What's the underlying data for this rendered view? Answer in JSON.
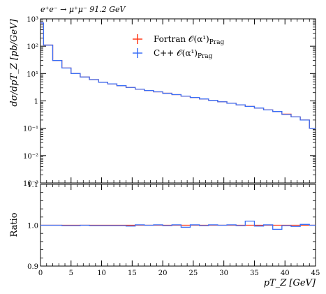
{
  "chart_data": {
    "type": "line",
    "title": "e⁺e⁻ → μ⁺μ⁻ 91.2 GeV",
    "xlabel": "pT_Z [GeV]",
    "ylabel_main": "dσ/dpT_Z [pb/GeV]",
    "ylabel_ratio": "Ratio",
    "xlim": [
      0,
      45
    ],
    "ylim_main": [
      0.001,
      1000
    ],
    "yscale_main": "log",
    "ylim_ratio": [
      0.9,
      1.1
    ],
    "x_ticks": [
      0,
      5,
      10,
      15,
      20,
      25,
      30,
      35,
      40,
      45
    ],
    "y_ticks_main": [
      {
        "value": 1000,
        "label": "10³"
      },
      {
        "value": 100,
        "label": "10²"
      },
      {
        "value": 10,
        "label": "10¹"
      },
      {
        "value": 1,
        "label": "1"
      },
      {
        "value": 0.1,
        "label": "10⁻¹"
      },
      {
        "value": 0.01,
        "label": "10⁻²"
      },
      {
        "value": 0.001,
        "label": "10⁻³"
      }
    ],
    "y_ticks_ratio": [
      {
        "value": 1.1,
        "label": "1.1"
      },
      {
        "value": 1.0,
        "label": "1.0"
      },
      {
        "value": 0.9,
        "label": "0.9"
      }
    ],
    "legend_position": "top-center",
    "grid": false,
    "bin_edges": [
      0,
      0.5,
      2,
      3.5,
      5,
      6.5,
      8,
      9.5,
      11,
      12.5,
      14,
      15.5,
      17,
      18.5,
      20,
      21.5,
      23,
      24.5,
      26,
      27.5,
      29,
      30.5,
      32,
      33.5,
      35,
      36.5,
      38,
      39.5,
      41,
      42.5,
      44,
      45
    ],
    "series": [
      {
        "name": "Fortran 𝒪(α¹)",
        "name_sub": "Prag",
        "color": "#ff3a1a",
        "values": [
          700,
          110,
          30,
          16,
          10,
          7.5,
          6,
          4.8,
          4.2,
          3.6,
          3.1,
          2.7,
          2.4,
          2.15,
          1.9,
          1.7,
          1.5,
          1.33,
          1.18,
          1.05,
          0.93,
          0.82,
          0.72,
          0.63,
          0.55,
          0.47,
          0.41,
          0.33,
          0.26,
          0.2,
          0.1
        ],
        "ratio": [
          1.0,
          1.0,
          1.0,
          1.0,
          1.0,
          1.0,
          1.0,
          1.0,
          1.0,
          1.0,
          1.0,
          1.0,
          1.0,
          1.0,
          1.0,
          1.0,
          1.0,
          1.0,
          1.0,
          1.0,
          1.0,
          1.0,
          1.0,
          1.0,
          1.0,
          1.0,
          1.0,
          1.0,
          1.0,
          1.0,
          1.0
        ]
      },
      {
        "name": "C++ 𝒪(α¹)",
        "name_sub": "Prag",
        "color": "#3a6ff7",
        "values": [
          705,
          110,
          30,
          16,
          10,
          7.5,
          6,
          4.8,
          4.2,
          3.6,
          3.1,
          2.7,
          2.4,
          2.15,
          1.9,
          1.7,
          1.5,
          1.33,
          1.18,
          1.05,
          0.93,
          0.82,
          0.72,
          0.63,
          0.55,
          0.47,
          0.41,
          0.32,
          0.26,
          0.2,
          0.1
        ],
        "ratio": [
          1.0,
          1.0,
          1.0,
          0.999,
          0.999,
          1.0,
          0.999,
          0.999,
          0.999,
          0.999,
          0.998,
          1.001,
          1.0,
          1.001,
          0.999,
          1.001,
          0.995,
          1.001,
          0.999,
          1.001,
          1.0,
          1.001,
          0.999,
          1.01,
          0.998,
          1.001,
          0.99,
          0.999,
          0.997,
          1.002,
          1.0
        ]
      }
    ]
  }
}
